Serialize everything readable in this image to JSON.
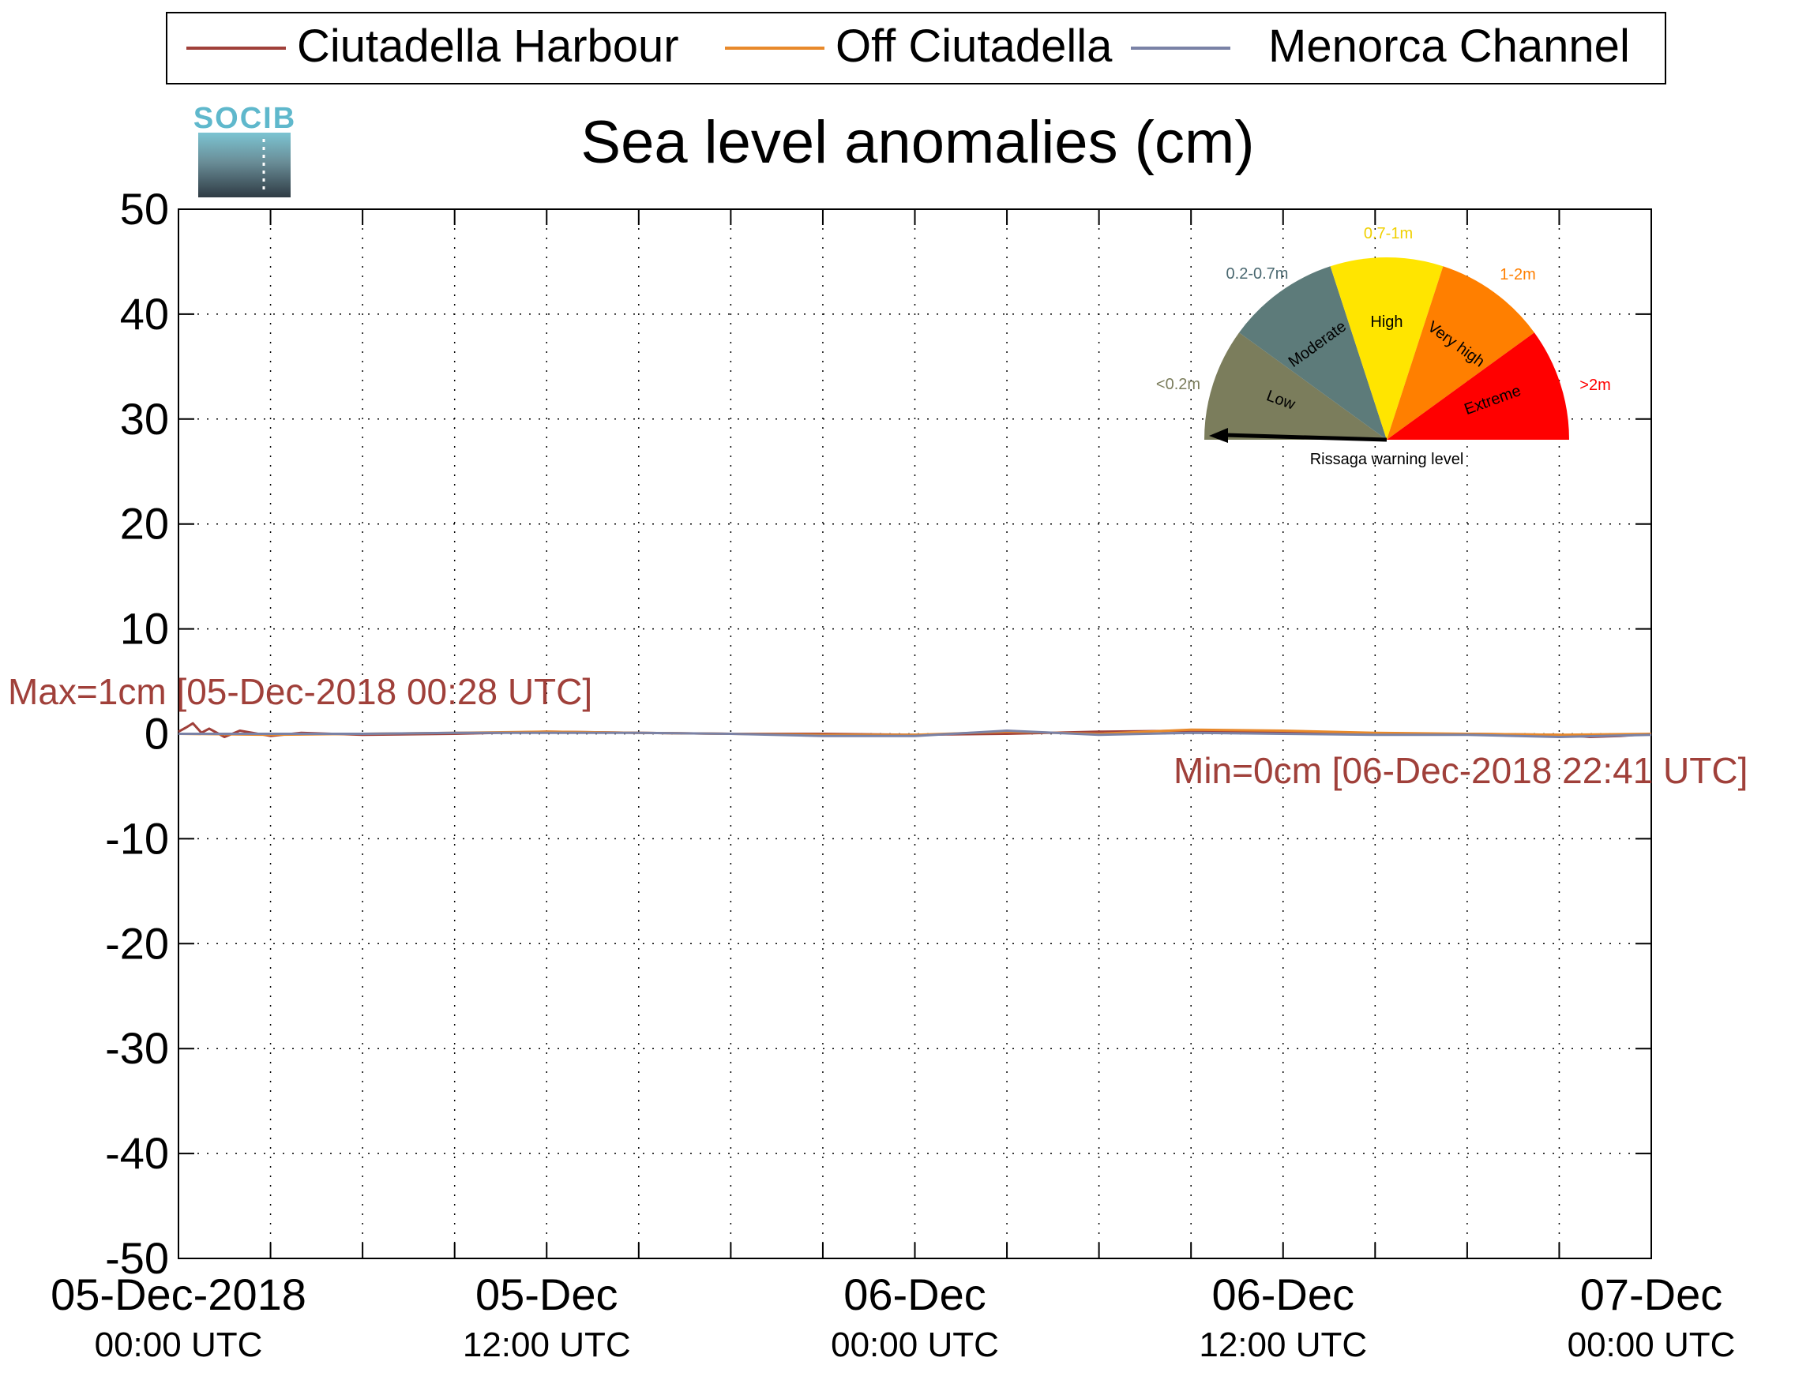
{
  "chart_data": {
    "type": "line",
    "title": "Sea level anomalies (cm)",
    "xlabel": "",
    "ylabel": "",
    "ylim": [
      -50,
      50
    ],
    "yticks": [
      50,
      40,
      30,
      20,
      10,
      0,
      -10,
      -20,
      -30,
      -40,
      -50
    ],
    "xlim": [
      "2018-12-05T00:00",
      "2018-12-07T00:00"
    ],
    "xtick_labels": [
      {
        "date": "2018-12-05T00:00",
        "line1": "05-Dec-2018",
        "line2": "00:00 UTC"
      },
      {
        "date": "2018-12-05T12:00",
        "line1": "05-Dec",
        "line2": "12:00 UTC"
      },
      {
        "date": "2018-12-06T00:00",
        "line1": "06-Dec",
        "line2": "00:00 UTC"
      },
      {
        "date": "2018-12-06T12:00",
        "line1": "06-Dec",
        "line2": "12:00 UTC"
      },
      {
        "date": "2018-12-07T00:00",
        "line1": "07-Dec",
        "line2": "00:00 UTC"
      }
    ],
    "minor_x_step_hours": 3,
    "grid": true,
    "legend_position": "top",
    "series": [
      {
        "name": "Ciutadella Harbour",
        "color": "#a0403a",
        "x_hours": [
          0,
          0.25,
          0.47,
          0.75,
          1,
          1.5,
          2,
          3,
          4,
          6,
          9,
          12,
          15,
          18,
          21,
          24,
          27,
          30,
          33,
          36,
          39,
          42,
          45,
          46,
          47,
          48
        ],
        "values": [
          0.2,
          0.6,
          1.0,
          0.1,
          0.5,
          -0.3,
          0.3,
          -0.2,
          0.1,
          -0.1,
          0.0,
          0.2,
          0.1,
          0.0,
          0.0,
          -0.1,
          0.0,
          0.2,
          0.3,
          0.1,
          0.0,
          0.0,
          -0.1,
          -0.3,
          -0.2,
          0.0
        ]
      },
      {
        "name": "Off Ciutadella",
        "color": "#e8892b",
        "x_hours": [
          0,
          3,
          6,
          9,
          12,
          15,
          18,
          21,
          24,
          27,
          30,
          33,
          36,
          39,
          42,
          45,
          48
        ],
        "values": [
          0.0,
          -0.1,
          0.0,
          0.1,
          0.2,
          0.1,
          0.0,
          -0.1,
          -0.1,
          0.2,
          0.0,
          0.4,
          0.3,
          0.1,
          0.0,
          -0.1,
          0.0
        ]
      },
      {
        "name": "Menorca Channel",
        "color": "#7a82a6",
        "x_hours": [
          0,
          3,
          6,
          9,
          12,
          15,
          18,
          21,
          24,
          27,
          30,
          33,
          36,
          39,
          42,
          45,
          48
        ],
        "values": [
          0.0,
          0.0,
          0.0,
          0.1,
          0.1,
          0.1,
          0.0,
          -0.2,
          -0.2,
          0.3,
          -0.1,
          0.1,
          0.0,
          -0.1,
          -0.1,
          -0.3,
          -0.1
        ]
      }
    ],
    "annotations": {
      "max_label": "Max=1cm [05-Dec-2018 00:28 UTC]",
      "min_label": "Min=0cm [06-Dec-2018 22:41 UTC]",
      "color": "#a0403a"
    }
  },
  "logo": {
    "text": "SOCIB",
    "color": "#5fb8cc"
  },
  "gauge": {
    "caption": "Rissaga warning level",
    "needle_level": "Low",
    "segments": [
      {
        "label": "Low",
        "range": "<0.2m",
        "color": "#7b7d5c",
        "range_color": "#7b7d5c"
      },
      {
        "label": "Moderate",
        "range": "0.2-0.7m",
        "color": "#5d7b7a",
        "range_color": "#4a6870"
      },
      {
        "label": "High",
        "range": "0.7-1m",
        "color": "#ffe500",
        "range_color": "#f0d000"
      },
      {
        "label": "Very high",
        "range": "1-2m",
        "color": "#ff7f00",
        "range_color": "#ff7f00"
      },
      {
        "label": "Extreme",
        "range": ">2m",
        "color": "#ff0000",
        "range_color": "#ff0000"
      }
    ]
  }
}
